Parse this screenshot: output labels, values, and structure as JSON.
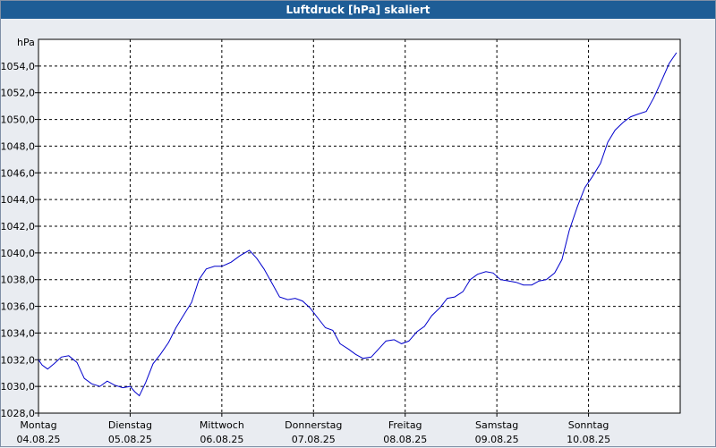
{
  "window": {
    "title": "Luftdruck [hPa] skaliert"
  },
  "colors": {
    "title_bar": "#1e5d96",
    "plot_bg": "#ffffff",
    "line": "#0000cc",
    "grid": "#000000",
    "background": "#e9ecf1"
  },
  "chart_data": {
    "type": "line",
    "title": "Luftdruck [hPa] skaliert",
    "ylabel": "hPa",
    "xlabel": "",
    "ylim": [
      1028,
      1056
    ],
    "xlim": [
      0,
      7
    ],
    "x_unit": "days from Montag 04.08.25 00:00",
    "yticks": [
      {
        "value": 1028,
        "label": "1028,0"
      },
      {
        "value": 1030,
        "label": "1030,0"
      },
      {
        "value": 1032,
        "label": "1032,0"
      },
      {
        "value": 1034,
        "label": "1034,0"
      },
      {
        "value": 1036,
        "label": "1036,0"
      },
      {
        "value": 1038,
        "label": "1038,0"
      },
      {
        "value": 1040,
        "label": "1040,0"
      },
      {
        "value": 1042,
        "label": "1042,0"
      },
      {
        "value": 1044,
        "label": "1044,0"
      },
      {
        "value": 1046,
        "label": "1046,0"
      },
      {
        "value": 1048,
        "label": "1048,0"
      },
      {
        "value": 1050,
        "label": "1050,0"
      },
      {
        "value": 1052,
        "label": "1052,0"
      },
      {
        "value": 1054,
        "label": "1054,0"
      }
    ],
    "xticks": [
      {
        "value": 0,
        "day": "Montag",
        "date": "04.08.25"
      },
      {
        "value": 1,
        "day": "Dienstag",
        "date": "05.08.25"
      },
      {
        "value": 2,
        "day": "Mittwoch",
        "date": "06.08.25"
      },
      {
        "value": 3,
        "day": "Donnerstag",
        "date": "07.08.25"
      },
      {
        "value": 4,
        "day": "Freitag",
        "date": "08.08.25"
      },
      {
        "value": 5,
        "day": "Samstag",
        "date": "09.08.25"
      },
      {
        "value": 6,
        "day": "Sonntag",
        "date": "10.08.25"
      }
    ],
    "grid": true,
    "series": [
      {
        "x": [
          0,
          0.04,
          0.1,
          0.17,
          0.25,
          0.33,
          0.42,
          0.5,
          0.58,
          0.67,
          0.75,
          0.83,
          0.92,
          1.0,
          1.05,
          1.1,
          1.17,
          1.25,
          1.33,
          1.42,
          1.5,
          1.58,
          1.67,
          1.75,
          1.83,
          1.92,
          2.0,
          2.1,
          2.2,
          2.3,
          2.38,
          2.46,
          2.55,
          2.63,
          2.72,
          2.8,
          2.88,
          2.96,
          3.05,
          3.13,
          3.21,
          3.29,
          3.38,
          3.46,
          3.54,
          3.63,
          3.71,
          3.79,
          3.88,
          3.96,
          4.04,
          4.13,
          4.21,
          4.29,
          4.38,
          4.46,
          4.54,
          4.63,
          4.71,
          4.79,
          4.88,
          4.96,
          5.04,
          5.13,
          5.21,
          5.29,
          5.38,
          5.46,
          5.54,
          5.63,
          5.71,
          5.79,
          5.88,
          5.96,
          6.04,
          6.13,
          6.21,
          6.29,
          6.38,
          6.46,
          6.54,
          6.63,
          6.71,
          6.79,
          6.88,
          6.96
        ],
        "y": [
          1032.0,
          1031.6,
          1031.3,
          1031.7,
          1032.2,
          1032.3,
          1031.8,
          1030.6,
          1030.2,
          1030.0,
          1030.4,
          1030.1,
          1029.9,
          1030.0,
          1029.6,
          1029.3,
          1030.3,
          1031.7,
          1032.4,
          1033.3,
          1034.4,
          1035.3,
          1036.3,
          1038.0,
          1038.8,
          1039.0,
          1039.0,
          1039.3,
          1039.8,
          1040.2,
          1039.6,
          1038.8,
          1037.7,
          1036.7,
          1036.5,
          1036.6,
          1036.4,
          1035.9,
          1035.1,
          1034.4,
          1034.2,
          1033.2,
          1032.8,
          1032.4,
          1032.1,
          1032.2,
          1032.8,
          1033.4,
          1033.5,
          1033.2,
          1033.4,
          1034.1,
          1034.5,
          1035.3,
          1035.9,
          1036.6,
          1036.7,
          1037.1,
          1038.0,
          1038.4,
          1038.6,
          1038.5,
          1038.0,
          1037.9,
          1037.8,
          1037.6,
          1037.6,
          1037.9,
          1038.0,
          1038.5,
          1039.5,
          1041.7,
          1043.5,
          1044.9,
          1045.7,
          1046.7,
          1048.3,
          1049.2,
          1049.8,
          1050.2,
          1050.4,
          1050.6,
          1051.6,
          1052.8,
          1054.2,
          1055.0
        ]
      }
    ]
  }
}
